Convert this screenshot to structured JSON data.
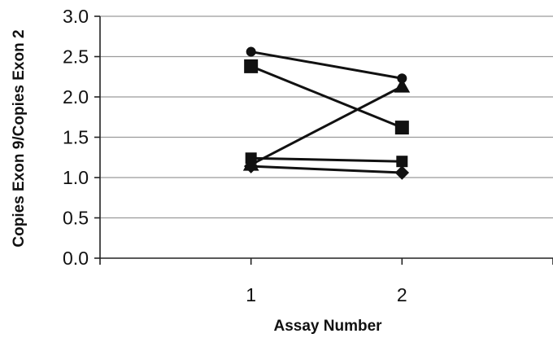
{
  "chart_data": {
    "type": "line",
    "title": "",
    "xlabel": "Assay Number",
    "ylabel": "Copies Exon 9/Copies Exon 2",
    "x": [
      1,
      2
    ],
    "xlim": [
      0,
      3
    ],
    "ylim": [
      0,
      3
    ],
    "xticks": [
      "1",
      "2"
    ],
    "yticks": [
      "0.0",
      "0.5",
      "1.0",
      "1.5",
      "2.0",
      "2.5",
      "3.0"
    ],
    "grid": true,
    "series": [
      {
        "marker": "circle",
        "values": [
          2.56,
          2.23
        ]
      },
      {
        "marker": "square-large",
        "values": [
          2.38,
          1.62
        ]
      },
      {
        "marker": "triangle",
        "values": [
          1.16,
          2.13
        ]
      },
      {
        "marker": "square-small",
        "values": [
          1.24,
          1.2
        ]
      },
      {
        "marker": "diamond",
        "values": [
          1.14,
          1.06
        ]
      }
    ]
  }
}
